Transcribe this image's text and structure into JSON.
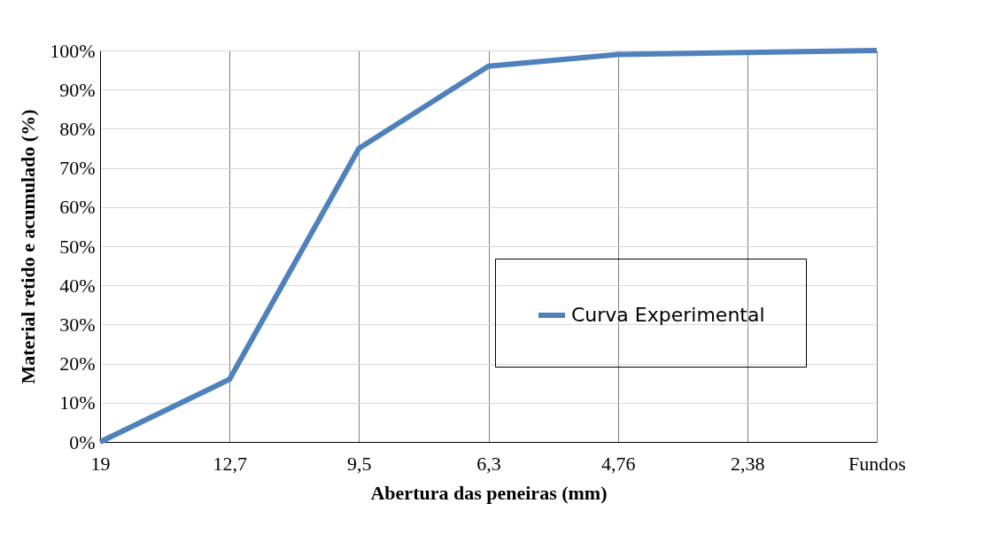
{
  "chart_data": {
    "type": "line",
    "xlabel": "Abertura das peneiras (mm)",
    "ylabel": "Material retido e acumulado (%)",
    "categories": [
      "19",
      "12,7",
      "9,5",
      "6,3",
      "4,76",
      "2,38",
      "Fundos"
    ],
    "series": [
      {
        "name": "Curva Experimental",
        "color": "#4f81bd",
        "values": [
          0,
          16,
          75,
          96,
          99,
          99.5,
          100
        ]
      }
    ],
    "ylim": [
      0,
      100
    ],
    "yticks": [
      {
        "value": 0,
        "label": "0%"
      },
      {
        "value": 10,
        "label": "10%"
      },
      {
        "value": 20,
        "label": "20%"
      },
      {
        "value": 30,
        "label": "30%"
      },
      {
        "value": 40,
        "label": "40%"
      },
      {
        "value": 50,
        "label": "50%"
      },
      {
        "value": 60,
        "label": "60%"
      },
      {
        "value": 70,
        "label": "70%"
      },
      {
        "value": 80,
        "label": "80%"
      },
      {
        "value": 90,
        "label": "90%"
      },
      {
        "value": 100,
        "label": "100%"
      }
    ],
    "grid": true,
    "legend": "right",
    "marker": "none",
    "line_style": "solid"
  }
}
